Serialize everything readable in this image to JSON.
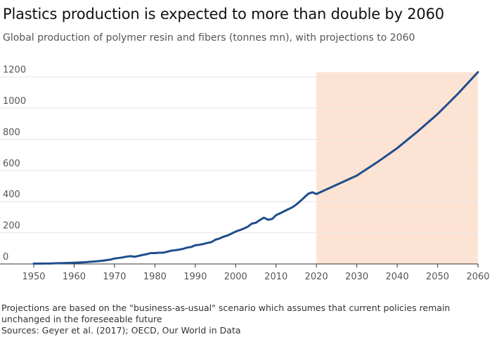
{
  "header": {
    "title": "Plastics production is expected to more than double by 2060",
    "subtitle": "Global production of polymer resin and fibers (tonnes mn), with projections to 2060"
  },
  "footer": {
    "note": "Projections are based on the \"business-as-usual\" scenario which assumes that current policies remain unchanged in the foreseeable future",
    "sources": "Sources: Geyer et al. (2017); OECD, Our World in Data"
  },
  "colors": {
    "line": "#1f4e8c",
    "projection_band": "#fde3d3",
    "grid": "#e6e6e6",
    "axis": "#333333"
  },
  "chart_data": {
    "type": "line",
    "title": "Plastics production is expected to more than double by 2060",
    "xlabel": "",
    "ylabel": "",
    "xlim": [
      1950,
      2060
    ],
    "ylim": [
      0,
      1230
    ],
    "x_ticks": [
      1950,
      1960,
      1970,
      1980,
      1990,
      2000,
      2010,
      2020,
      2030,
      2040,
      2050,
      2060
    ],
    "y_ticks": [
      0,
      200,
      400,
      600,
      800,
      1000,
      1200
    ],
    "grid": true,
    "projection_range": [
      2020,
      2060
    ],
    "series": [
      {
        "name": "",
        "x": [
          1950,
          1951,
          1952,
          1953,
          1954,
          1955,
          1956,
          1957,
          1958,
          1959,
          1960,
          1961,
          1962,
          1963,
          1964,
          1965,
          1966,
          1967,
          1968,
          1969,
          1970,
          1971,
          1972,
          1973,
          1974,
          1975,
          1976,
          1977,
          1978,
          1979,
          1980,
          1981,
          1982,
          1983,
          1984,
          1985,
          1986,
          1987,
          1988,
          1989,
          1990,
          1991,
          1992,
          1993,
          1994,
          1995,
          1996,
          1997,
          1998,
          1999,
          2000,
          2001,
          2002,
          2003,
          2004,
          2005,
          2006,
          2007,
          2008,
          2009,
          2010,
          2011,
          2012,
          2013,
          2014,
          2015,
          2016,
          2017,
          2018,
          2019,
          2020,
          2025,
          2030,
          2035,
          2040,
          2045,
          2050,
          2055,
          2060
        ],
        "values": [
          2,
          2,
          2,
          3,
          3,
          4,
          5,
          5,
          6,
          7,
          8,
          9,
          10,
          12,
          14,
          16,
          18,
          21,
          24,
          28,
          35,
          38,
          42,
          47,
          50,
          46,
          52,
          58,
          63,
          70,
          70,
          72,
          72,
          78,
          85,
          88,
          92,
          97,
          105,
          109,
          120,
          123,
          128,
          135,
          140,
          156,
          163,
          175,
          183,
          195,
          208,
          217,
          227,
          239,
          259,
          264,
          282,
          297,
          284,
          288,
          313,
          325,
          338,
          351,
          363,
          381,
          403,
          427,
          451,
          460,
          449,
          508,
          567,
          652,
          743,
          849,
          962,
          1091,
          1231
        ]
      }
    ]
  }
}
